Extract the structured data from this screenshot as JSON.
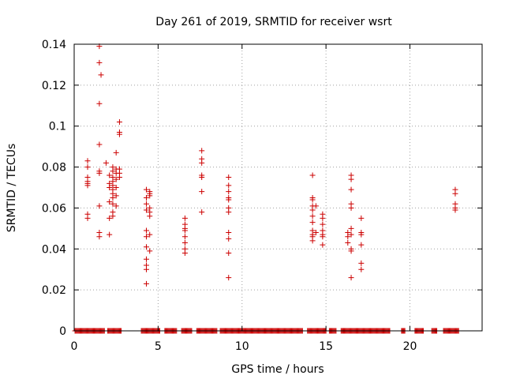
{
  "chart_data": {
    "type": "scatter",
    "title": "Day 261 of 2019, SRMTID for receiver wsrt",
    "xlabel": "GPS time / hours",
    "ylabel": "SRMTID / TECUs",
    "xlim": [
      0,
      24.3
    ],
    "ylim": [
      0,
      0.14
    ],
    "x_ticks": [
      "0",
      "5",
      "10",
      "15",
      "20"
    ],
    "x_tick_values": [
      0,
      5,
      10,
      15,
      20
    ],
    "y_ticks": [
      "0",
      "0.02",
      "0.04",
      "0.06",
      "0.08",
      "0.1",
      "0.12",
      "0.14"
    ],
    "y_tick_values": [
      0,
      0.02,
      0.04,
      0.06,
      0.08,
      0.1,
      0.12,
      0.14
    ],
    "grid": true,
    "marker": "plus",
    "color": "#cc0000",
    "series": [
      {
        "points": [
          [
            0.8,
            0.083
          ],
          [
            0.8,
            0.08
          ],
          [
            0.8,
            0.075
          ],
          [
            0.8,
            0.073
          ],
          [
            0.8,
            0.072
          ],
          [
            0.8,
            0.071
          ],
          [
            0.8,
            0.057
          ],
          [
            0.8,
            0.055
          ],
          [
            1.5,
            0.139
          ],
          [
            1.5,
            0.131
          ],
          [
            1.6,
            0.125
          ],
          [
            1.5,
            0.111
          ],
          [
            1.5,
            0.091
          ],
          [
            1.5,
            0.078
          ],
          [
            1.5,
            0.077
          ],
          [
            1.5,
            0.061
          ],
          [
            1.5,
            0.048
          ],
          [
            1.5,
            0.046
          ],
          [
            1.9,
            0.082
          ],
          [
            2.1,
            0.076
          ],
          [
            2.1,
            0.072
          ],
          [
            2.1,
            0.07
          ],
          [
            2.1,
            0.063
          ],
          [
            2.1,
            0.055
          ],
          [
            2.1,
            0.047
          ],
          [
            2.3,
            0.08
          ],
          [
            2.3,
            0.078
          ],
          [
            2.3,
            0.075
          ],
          [
            2.3,
            0.073
          ],
          [
            2.3,
            0.071
          ],
          [
            2.3,
            0.069
          ],
          [
            2.3,
            0.067
          ],
          [
            2.3,
            0.065
          ],
          [
            2.3,
            0.062
          ],
          [
            2.3,
            0.058
          ],
          [
            2.3,
            0.056
          ],
          [
            2.5,
            0.087
          ],
          [
            2.5,
            0.079
          ],
          [
            2.5,
            0.077
          ],
          [
            2.5,
            0.074
          ],
          [
            2.5,
            0.07
          ],
          [
            2.5,
            0.066
          ],
          [
            2.5,
            0.061
          ],
          [
            2.7,
            0.102
          ],
          [
            2.7,
            0.097
          ],
          [
            2.7,
            0.096
          ],
          [
            2.7,
            0.079
          ],
          [
            2.7,
            0.077
          ],
          [
            2.7,
            0.075
          ],
          [
            4.3,
            0.069
          ],
          [
            4.3,
            0.065
          ],
          [
            4.3,
            0.062
          ],
          [
            4.3,
            0.059
          ],
          [
            4.3,
            0.049
          ],
          [
            4.3,
            0.046
          ],
          [
            4.3,
            0.041
          ],
          [
            4.3,
            0.035
          ],
          [
            4.3,
            0.032
          ],
          [
            4.3,
            0.03
          ],
          [
            4.3,
            0.023
          ],
          [
            4.5,
            0.068
          ],
          [
            4.5,
            0.067
          ],
          [
            4.5,
            0.066
          ],
          [
            4.5,
            0.06
          ],
          [
            4.5,
            0.058
          ],
          [
            4.5,
            0.056
          ],
          [
            4.5,
            0.047
          ],
          [
            4.5,
            0.039
          ],
          [
            6.6,
            0.055
          ],
          [
            6.6,
            0.052
          ],
          [
            6.6,
            0.049
          ],
          [
            6.6,
            0.046
          ],
          [
            6.6,
            0.043
          ],
          [
            6.6,
            0.04
          ],
          [
            6.6,
            0.038
          ],
          [
            6.6,
            0.05
          ],
          [
            7.6,
            0.088
          ],
          [
            7.6,
            0.084
          ],
          [
            7.6,
            0.082
          ],
          [
            7.6,
            0.076
          ],
          [
            7.6,
            0.075
          ],
          [
            7.6,
            0.068
          ],
          [
            7.6,
            0.058
          ],
          [
            9.2,
            0.075
          ],
          [
            9.2,
            0.071
          ],
          [
            9.2,
            0.068
          ],
          [
            9.2,
            0.065
          ],
          [
            9.2,
            0.064
          ],
          [
            9.2,
            0.06
          ],
          [
            9.2,
            0.058
          ],
          [
            9.2,
            0.048
          ],
          [
            9.2,
            0.045
          ],
          [
            9.2,
            0.038
          ],
          [
            9.2,
            0.026
          ],
          [
            14.2,
            0.076
          ],
          [
            14.2,
            0.065
          ],
          [
            14.2,
            0.064
          ],
          [
            14.2,
            0.061
          ],
          [
            14.2,
            0.059
          ],
          [
            14.2,
            0.056
          ],
          [
            14.2,
            0.053
          ],
          [
            14.2,
            0.049
          ],
          [
            14.2,
            0.047
          ],
          [
            14.2,
            0.046
          ],
          [
            14.2,
            0.044
          ],
          [
            14.4,
            0.061
          ],
          [
            14.4,
            0.048
          ],
          [
            14.8,
            0.057
          ],
          [
            14.8,
            0.055
          ],
          [
            14.8,
            0.052
          ],
          [
            14.8,
            0.049
          ],
          [
            14.8,
            0.047
          ],
          [
            14.8,
            0.046
          ],
          [
            14.8,
            0.042
          ],
          [
            16.3,
            0.048
          ],
          [
            16.3,
            0.046
          ],
          [
            16.3,
            0.043
          ],
          [
            16.5,
            0.076
          ],
          [
            16.5,
            0.074
          ],
          [
            16.5,
            0.069
          ],
          [
            16.5,
            0.062
          ],
          [
            16.5,
            0.06
          ],
          [
            16.5,
            0.05
          ],
          [
            16.5,
            0.047
          ],
          [
            16.5,
            0.04
          ],
          [
            16.5,
            0.039
          ],
          [
            16.5,
            0.026
          ],
          [
            17.1,
            0.055
          ],
          [
            17.1,
            0.048
          ],
          [
            17.1,
            0.047
          ],
          [
            17.1,
            0.042
          ],
          [
            17.1,
            0.033
          ],
          [
            17.1,
            0.03
          ],
          [
            22.7,
            0.069
          ],
          [
            22.7,
            0.067
          ],
          [
            22.7,
            0.062
          ],
          [
            22.7,
            0.06
          ],
          [
            22.7,
            0.059
          ]
        ],
        "zero_ranges": [
          [
            0.05,
            1.8
          ],
          [
            2.0,
            2.8
          ],
          [
            4.0,
            5.1
          ],
          [
            5.4,
            6.1
          ],
          [
            6.4,
            7.0
          ],
          [
            7.3,
            8.5
          ],
          [
            8.7,
            13.6
          ],
          [
            13.9,
            15.0
          ],
          [
            15.2,
            15.6
          ],
          [
            15.9,
            18.8
          ],
          [
            19.5,
            19.7
          ],
          [
            20.3,
            20.8
          ],
          [
            21.3,
            21.6
          ],
          [
            22.0,
            22.9
          ]
        ],
        "zero_step": 0.05
      }
    ]
  }
}
